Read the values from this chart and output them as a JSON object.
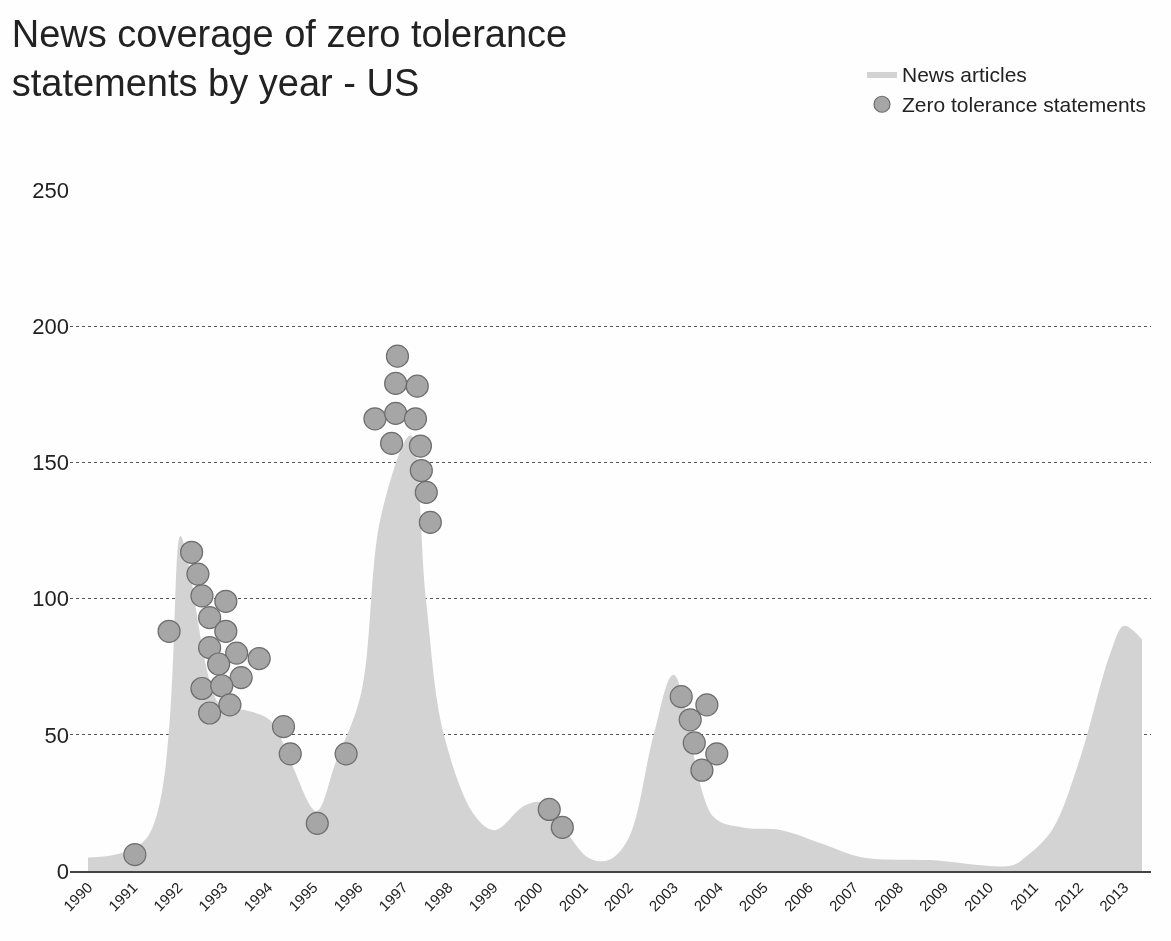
{
  "chart_data": {
    "type": "area",
    "title": "News coverage of zero tolerance statements by year - US",
    "xlim": [
      1989.6,
      2013.6
    ],
    "xticks": [
      1990,
      1991,
      1992,
      1993,
      1994,
      1995,
      1996,
      1997,
      1998,
      1999,
      2000,
      2001,
      2002,
      2003,
      2004,
      2005,
      2006,
      2007,
      2008,
      2009,
      2010,
      2011,
      2012,
      2013
    ],
    "ylim": [
      0,
      250
    ],
    "yticks": [
      0,
      50,
      100,
      150,
      200,
      250
    ],
    "grid": "y",
    "legend": "top right",
    "series": [
      {
        "name": "News articles",
        "color": "#d3d3d3",
        "x": [
          1990.0,
          1991.1,
          1991.3,
          1992.05,
          1992.2,
          1992.97,
          1993.5,
          1994.07,
          1994.5,
          1995.07,
          1995.5,
          1996.06,
          1996.5,
          1996.83,
          1996.94,
          1997.16,
          1997.5,
          1997.9,
          1998.6,
          1999.03,
          1999.7,
          2000.1,
          2000.57,
          2001.1,
          2001.56,
          2002.0,
          2002.56,
          2003.0,
          2003.44,
          2003.88,
          2004.54,
          2005.4,
          2006.3,
          2007.2,
          2008.7,
          2010.5,
          2010.8,
          2011.4,
          2012.0,
          2012.7,
          2013.0,
          2013.4
        ],
        "values": [
          5,
          null,
          12,
          123,
          115,
          60,
          59,
          55,
          40,
          22,
          40,
          65,
          130,
          null,
          null,
          160,
          100,
          50,
          20,
          15,
          24,
          25,
          null,
          5,
          4,
          12,
          50,
          72,
          null,
          20,
          16,
          15,
          10,
          5,
          4,
          2,
          5,
          15,
          40,
          80,
          90,
          85
        ]
      },
      {
        "name": "Zero tolerance statements",
        "type": "scatter",
        "color": "#a6a6a6",
        "marker": "circle",
        "x": [
          1991.04,
          1991.8,
          1992.3,
          1992.44,
          1992.53,
          1993.06,
          1992.7,
          1993.06,
          1992.7,
          1993.3,
          1993.8,
          1992.9,
          1993.4,
          1992.53,
          1992.97,
          1992.7,
          1993.15,
          1994.34,
          1994.49,
          1995.09,
          1995.73,
          1996.37,
          1996.83,
          1996.74,
          1996.83,
          1996.87,
          1997.31,
          1997.27,
          1997.38,
          1997.4,
          1997.51,
          1997.6,
          2000.24,
          2000.53,
          2003.17,
          2003.74,
          2003.37,
          2003.46,
          2003.96,
          2003.63
        ],
        "values": [
          6,
          88,
          117,
          109,
          101,
          99,
          93,
          88,
          82,
          80,
          78,
          76,
          71,
          67,
          68,
          58,
          61,
          53,
          43,
          17.5,
          43,
          166,
          168,
          157,
          179,
          189,
          178,
          166,
          156,
          147,
          139,
          128,
          22.6,
          16,
          64,
          61,
          55.5,
          47,
          43,
          37
        ]
      }
    ]
  }
}
